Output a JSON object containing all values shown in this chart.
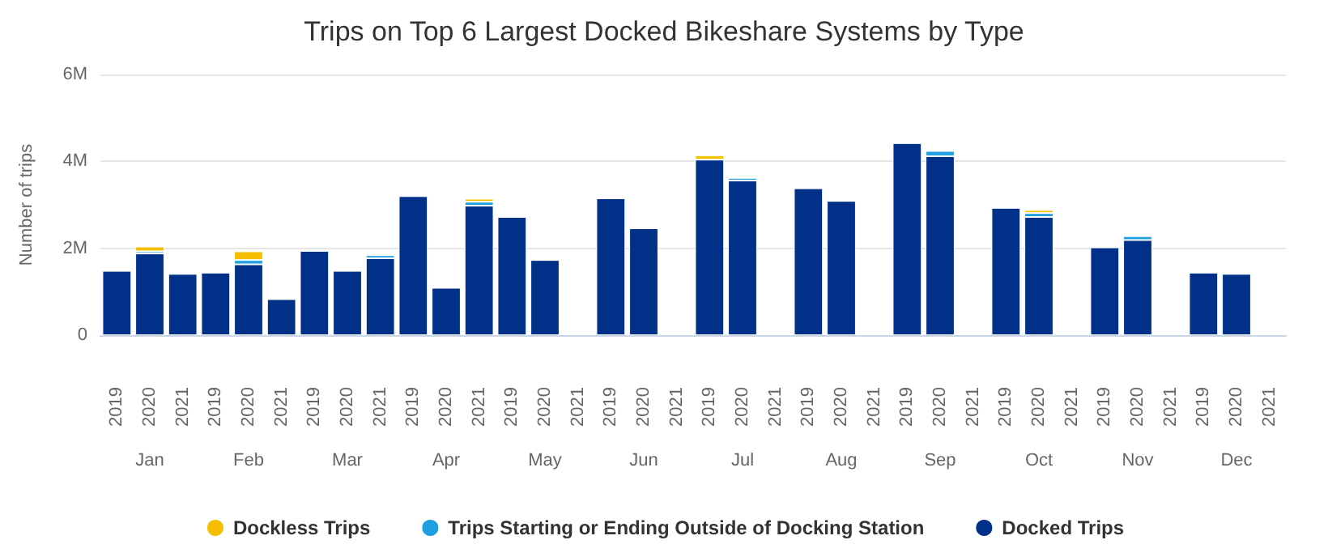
{
  "chart_data": {
    "type": "bar",
    "title": "Trips on Top 6 Largest Docked Bikeshare Systems by Type",
    "ylabel": "Number of trips",
    "categories": [
      "2019",
      "2020",
      "2021",
      "2019",
      "2020",
      "2021",
      "2019",
      "2020",
      "2021",
      "2019",
      "2020",
      "2021",
      "2019",
      "2020",
      "2021",
      "2019",
      "2020",
      "2021",
      "2019",
      "2020",
      "2021",
      "2019",
      "2020",
      "2021",
      "2019",
      "2020",
      "2021",
      "2019",
      "2020",
      "2021",
      "2019",
      "2020",
      "2021",
      "2019",
      "2020",
      "2021"
    ],
    "annotations": [
      "Jan",
      "Feb",
      "Mar",
      "Apr",
      "May",
      "Jun",
      "Jul",
      "Aug",
      "Sep",
      "Oct",
      "Nov",
      "Dec"
    ],
    "stacked": true,
    "series": [
      {
        "name": "Docked Trips",
        "color": "#003087",
        "values": [
          1480000,
          1880000,
          1410000,
          1440000,
          1630000,
          830000,
          1940000,
          1480000,
          1770000,
          3200000,
          1090000,
          2980000,
          2720000,
          1730000,
          null,
          3150000,
          2460000,
          null,
          4040000,
          3560000,
          null,
          3380000,
          3090000,
          null,
          4420000,
          4120000,
          null,
          2930000,
          2720000,
          null,
          2020000,
          2190000,
          null,
          1440000,
          1410000,
          null
        ]
      },
      {
        "name": "Trips Starting or Ending Outside of Docking Station",
        "color": "#1f9ee0",
        "values": [
          null,
          50000,
          null,
          null,
          100000,
          null,
          null,
          null,
          70000,
          null,
          null,
          90000,
          null,
          null,
          null,
          null,
          null,
          null,
          null,
          60000,
          null,
          null,
          null,
          null,
          null,
          120000,
          null,
          null,
          90000,
          null,
          null,
          90000,
          null,
          null,
          null,
          null
        ]
      },
      {
        "name": "Dockless Trips",
        "color": "#f5bf00",
        "values": [
          null,
          110000,
          null,
          null,
          200000,
          null,
          null,
          null,
          null,
          null,
          null,
          70000,
          null,
          null,
          null,
          null,
          null,
          null,
          100000,
          null,
          null,
          null,
          null,
          null,
          null,
          null,
          null,
          null,
          70000,
          null,
          null,
          null,
          null,
          null,
          null,
          null
        ]
      }
    ],
    "ylim": [
      0,
      6000000
    ],
    "yticks": [
      0,
      {
        "value": 2000000,
        "label": "2M"
      },
      {
        "value": 4000000,
        "label": "4M"
      },
      {
        "value": 6000000,
        "label": "6M"
      }
    ],
    "grid": "y",
    "legend": "bottom"
  }
}
